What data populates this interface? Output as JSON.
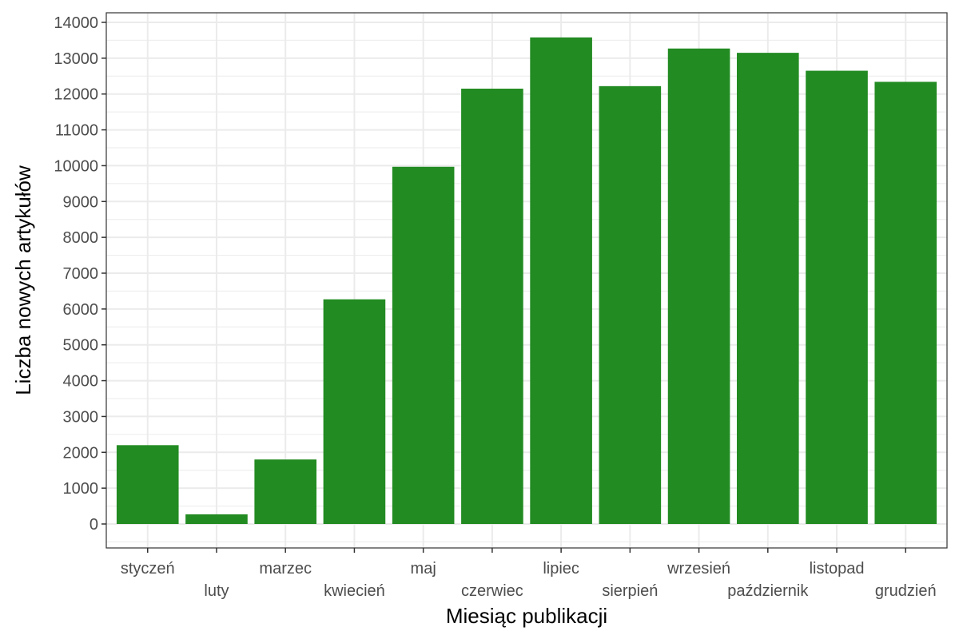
{
  "chart_data": {
    "type": "bar",
    "categories": [
      "styczeń",
      "luty",
      "marzec",
      "kwiecień",
      "maj",
      "czerwiec",
      "lipiec",
      "sierpień",
      "wrzesień",
      "październik",
      "listopad",
      "grudzień"
    ],
    "values": [
      2200,
      270,
      1800,
      6270,
      9970,
      12150,
      13580,
      12220,
      13270,
      13150,
      12650,
      12340
    ],
    "title": "",
    "xlabel": "Miesiąc publikacji",
    "ylabel": "Liczba nowych artykułów",
    "ylim": [
      0,
      14000
    ],
    "yticks": [
      0,
      1000,
      2000,
      3000,
      4000,
      5000,
      6000,
      7000,
      8000,
      9000,
      10000,
      11000,
      12000,
      13000,
      14000
    ],
    "grid": true,
    "legend": "none",
    "bar_color": "#228b22",
    "background": "#ffffff",
    "grid_color": "#ebebeb",
    "panel_border_color": "#333333"
  }
}
